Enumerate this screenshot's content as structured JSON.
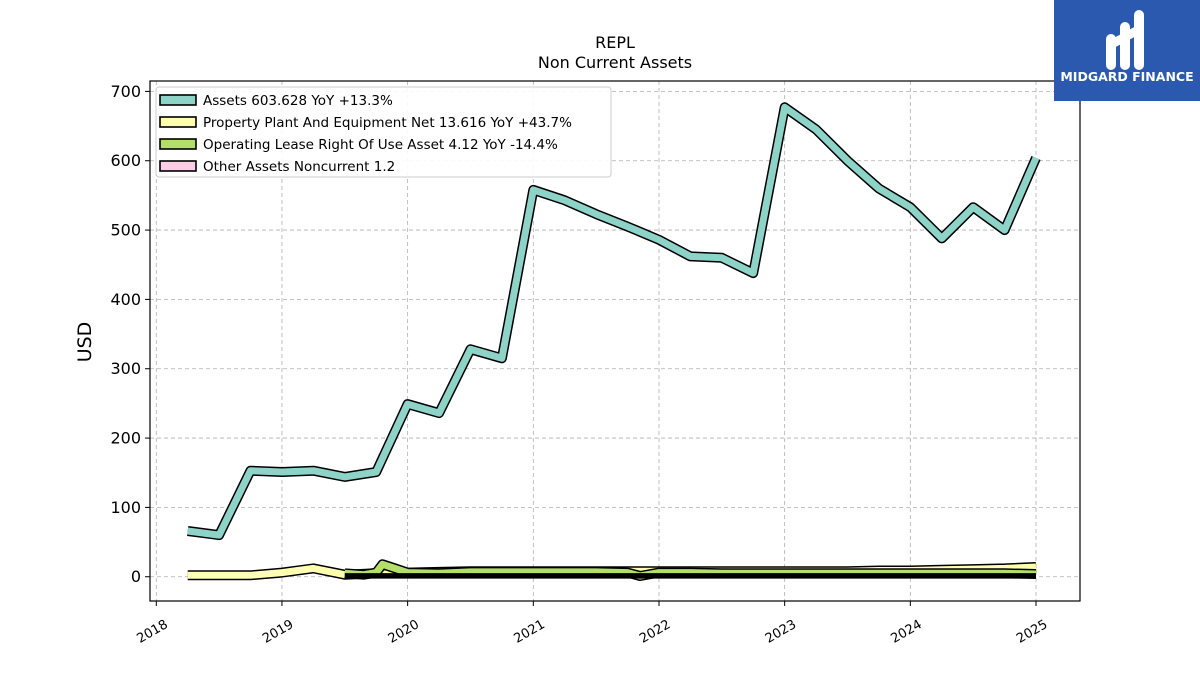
{
  "chart_data": {
    "type": "line",
    "title": "REPL",
    "subtitle": "Non Current  Assets",
    "xlabel": "",
    "ylabel": "USD",
    "xlim": [
      2017.95,
      2025.35
    ],
    "ylim": [
      -35,
      715
    ],
    "x_ticks": [
      {
        "value": 2018,
        "label": "2018"
      },
      {
        "value": 2019,
        "label": "2019"
      },
      {
        "value": 2020,
        "label": "2020"
      },
      {
        "value": 2021,
        "label": "2021"
      },
      {
        "value": 2022,
        "label": "2022"
      },
      {
        "value": 2023,
        "label": "2023"
      },
      {
        "value": 2024,
        "label": "2024"
      },
      {
        "value": 2025,
        "label": "2025"
      }
    ],
    "y_ticks": [
      {
        "value": 0,
        "label": "0"
      },
      {
        "value": 100,
        "label": "100"
      },
      {
        "value": 200,
        "label": "200"
      },
      {
        "value": 300,
        "label": "300"
      },
      {
        "value": 400,
        "label": "400"
      },
      {
        "value": 500,
        "label": "500"
      },
      {
        "value": 600,
        "label": "600"
      },
      {
        "value": 700,
        "label": "700"
      }
    ],
    "grid": true,
    "legend_position": "top-left",
    "series": [
      {
        "name": "Assets  603.628 YoY +13.3%",
        "color": "#8dd3c7",
        "width": 7,
        "x": [
          2018.25,
          2018.5,
          2018.75,
          2019.0,
          2019.25,
          2019.5,
          2019.75,
          2020.0,
          2020.25,
          2020.5,
          2020.75,
          2021.0,
          2021.25,
          2021.5,
          2021.75,
          2022.0,
          2022.25,
          2022.5,
          2022.75,
          2023.0,
          2023.25,
          2023.5,
          2023.75,
          2024.0,
          2024.25,
          2024.5,
          2024.75,
          2025.0
        ],
        "y": [
          66,
          60,
          153,
          151,
          153,
          144,
          151,
          249,
          236,
          328,
          315,
          558,
          543,
          523,
          505,
          486,
          462,
          460,
          438,
          677,
          645,
          600,
          560,
          533,
          488,
          533,
          500,
          604
        ]
      },
      {
        "name": "Property Plant And Equipment Net  13.616 YoY +43.7%",
        "color": "#ffffb3",
        "width": 7,
        "x": [
          2018.25,
          2018.5,
          2018.75,
          2019.0,
          2019.25,
          2019.5,
          2019.75,
          2020.0,
          2020.25,
          2020.5,
          2020.75,
          2021.0,
          2021.25,
          2021.5,
          2021.75,
          2022.0,
          2022.25,
          2022.5,
          2022.75,
          2023.0,
          2023.25,
          2023.5,
          2023.75,
          2024.0,
          2024.25,
          2024.5,
          2024.75,
          2025.0
        ],
        "y": [
          2,
          2,
          2,
          6,
          12,
          3,
          5,
          6,
          7,
          8,
          8,
          8,
          8,
          8,
          8,
          8,
          8,
          8,
          8,
          8,
          8,
          8,
          9,
          9,
          10,
          11,
          12,
          14
        ]
      },
      {
        "name": "Operating Lease Right Of Use Asset  4.12 YoY -14.4%",
        "color": "#b3de69",
        "width": 7,
        "x": [
          2019.5,
          2019.65,
          2019.75,
          2019.8,
          2019.9,
          2020.0,
          2020.25,
          2020.5,
          2020.75,
          2021.0,
          2021.25,
          2021.5,
          2021.75,
          2021.85,
          2022.0,
          2022.25,
          2022.5,
          2022.75,
          2023.0,
          2023.25,
          2023.5,
          2023.75,
          2024.0,
          2024.25,
          2024.5,
          2024.75,
          2025.0
        ],
        "y": [
          5,
          3,
          6,
          18,
          12,
          6,
          5,
          7,
          7,
          7,
          7,
          7,
          6,
          1,
          6,
          6,
          5,
          5,
          5,
          5,
          5,
          5,
          5,
          5,
          5,
          5,
          4
        ]
      },
      {
        "name": "Other Assets Noncurrent  1.2",
        "color": "#fccde5",
        "width": 2.5,
        "x": [
          2019.5,
          2020.0,
          2021.0,
          2022.0,
          2023.0,
          2024.0,
          2025.0
        ],
        "y": [
          1.2,
          1.2,
          1.2,
          1.2,
          1.2,
          1.2,
          1.2
        ]
      }
    ]
  },
  "logo": {
    "text": "MIDGARD FINANCE",
    "background": "#2b59b0"
  }
}
